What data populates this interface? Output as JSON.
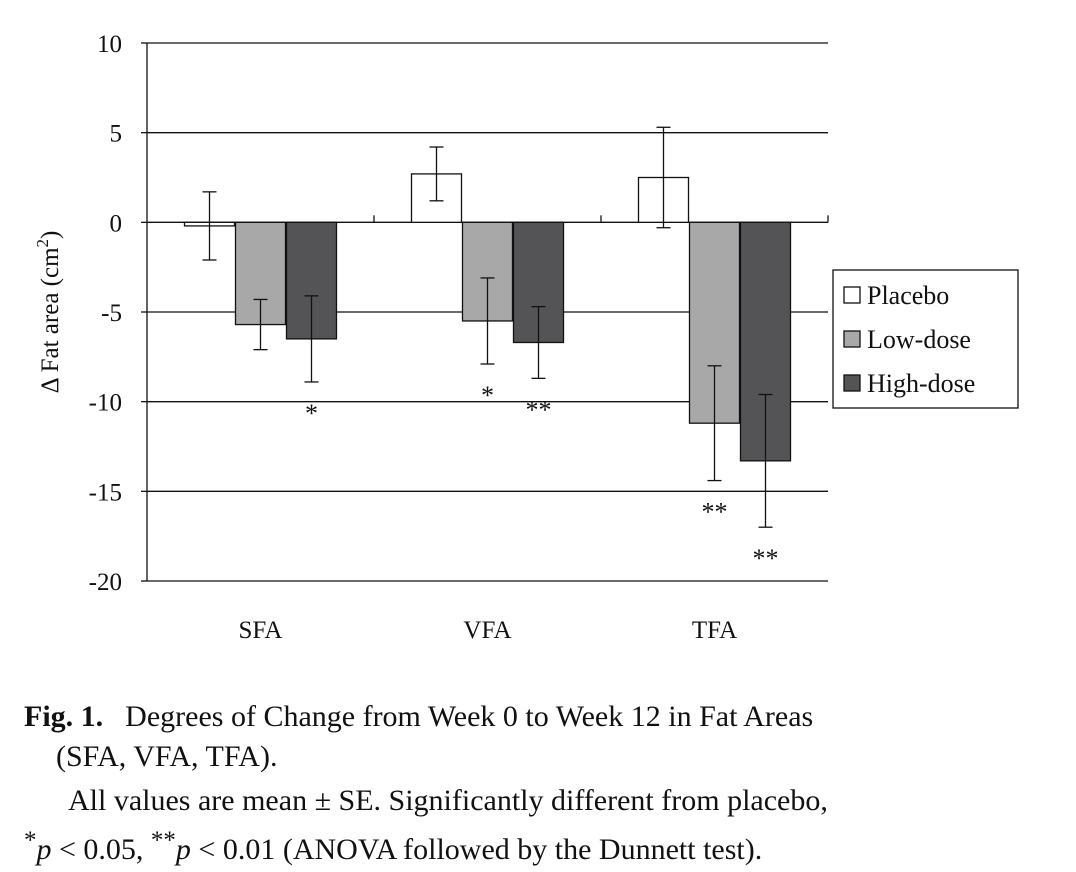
{
  "chart_data": {
    "type": "bar",
    "ylabel_main": "Δ Fat area (cm",
    "ylabel_sup": "2",
    "ylabel_close": ")",
    "ylim": [
      -20,
      10
    ],
    "yticks": [
      10,
      5,
      0,
      -5,
      -10,
      -15,
      -20
    ],
    "ytick_labels": [
      "10",
      "5",
      "0",
      "-5",
      "-10",
      "-15",
      "-20"
    ],
    "categories": [
      "SFA",
      "VFA",
      "TFA"
    ],
    "series": [
      {
        "name": "Placebo",
        "color": "#ffffff",
        "values": [
          -0.2,
          2.7,
          2.5
        ],
        "errors": [
          1.9,
          1.5,
          2.8
        ],
        "significance": [
          "",
          "",
          ""
        ]
      },
      {
        "name": "Low-dose",
        "color": "#a8a8a8",
        "values": [
          -5.7,
          -5.5,
          -11.2
        ],
        "errors": [
          1.4,
          2.4,
          3.2
        ],
        "significance": [
          "",
          "*",
          "**"
        ]
      },
      {
        "name": "High-dose",
        "color": "#545456",
        "values": [
          -6.5,
          -6.7,
          -13.3
        ],
        "errors": [
          2.4,
          2.0,
          3.7
        ],
        "significance": [
          "*",
          "**",
          "**"
        ]
      }
    ],
    "legend_position": "right",
    "grid": true
  },
  "caption": {
    "fig_label": "Fig. 1.",
    "title_line1": "Degrees of Change from Week 0 to Week 12 in Fat Areas",
    "title_line2": "(SFA, VFA, TFA).",
    "note_line1": "All values are mean ± SE. Significantly different from placebo,",
    "note_star1": "*",
    "note_p1": "p",
    "note_mid": " < 0.05, ",
    "note_star2": "**",
    "note_p2": "p",
    "note_end": " < 0.01 (ANOVA followed by the Dunnett test)."
  }
}
